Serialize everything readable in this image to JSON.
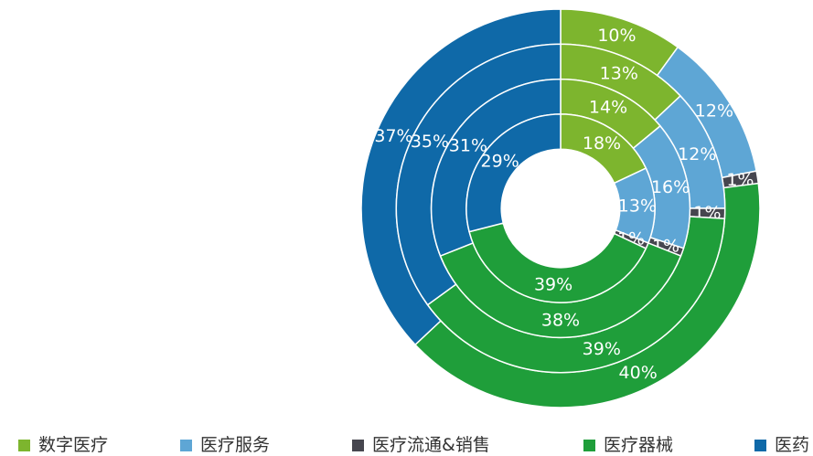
{
  "chart_data": {
    "type": "donut",
    "series": [
      {
        "name": "数字医疗",
        "color": "#7db52e",
        "values": [
          10,
          13,
          14,
          18
        ],
        "value_labels": [
          "10%",
          "13%",
          "14%",
          "18%"
        ]
      },
      {
        "name": "医疗服务",
        "color": "#5ea6d5",
        "values": [
          12,
          12,
          16,
          13
        ],
        "value_labels": [
          "12%",
          "12%",
          "16%",
          "13%"
        ]
      },
      {
        "name": "医疗流通&销售",
        "color": "#46464f",
        "values": [
          1,
          1,
          1,
          1
        ],
        "value_labels": [
          "1%",
          "1%",
          "1%",
          "1%"
        ]
      },
      {
        "name": "医疗器械",
        "color": "#1f9e3a",
        "values": [
          40,
          39,
          38,
          39
        ],
        "value_labels": [
          "40%",
          "39%",
          "38%",
          "39%"
        ]
      },
      {
        "name": "医药",
        "color": "#0f69a8",
        "values": [
          37,
          35,
          31,
          29
        ],
        "value_labels": [
          "37%",
          "35%",
          "31%",
          "29%"
        ]
      }
    ]
  }
}
